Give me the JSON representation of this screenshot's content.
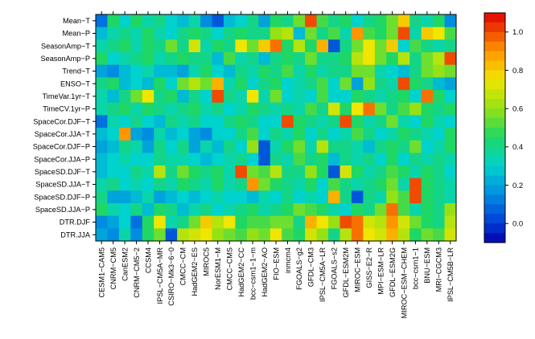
{
  "chart_data": {
    "type": "heatmap",
    "title": "",
    "xlabel": "",
    "ylabel": "",
    "rows": [
      "Mean−T",
      "Mean−P",
      "SeasonAmp−T",
      "SeasonAmp−P",
      "Trend−T",
      "ENSO−T",
      "TimeVar.1yr−T",
      "TimeCV.1yr−P",
      "SpaceCor.DJF−T",
      "SpaceCor.JJA−T",
      "SpaceCor.DJF−P",
      "SpaceCor.JJA−P",
      "SpaceSD.DJF−T",
      "SpaceSD.JJA−T",
      "SpaceSD.DJF−P",
      "SpaceSD.JJA−P",
      "DTR.DJF",
      "DTR.JJA"
    ],
    "columns": [
      "CESM1−CAM5",
      "CNRM−CM5",
      "CanESM2",
      "CNRM−CM5−2",
      "CCSM4",
      "IPSL−CM5A−MR",
      "CSIRO−Mk3−6−0",
      "CMCC−CM",
      "HadGEM2−ES",
      "MIROC5",
      "NorESM1−M",
      "CMCC−CMS",
      "HadGEM2−CC",
      "bcc−csm1−1−m",
      "HadGEM2−AO",
      "FIO−ESM",
      "inmcm4",
      "FGOALS−g2",
      "GFDL−CM3",
      "IPSL−CM5A−LR",
      "FGOALS−s2",
      "GFDL−ESM2M",
      "MIROC−ESM",
      "GISS−E2−R",
      "MPI−ESM−LR",
      "GFDL−ESM2G",
      "MIROC−ESM−CHEM",
      "bcc−csm1−1",
      "BNU−ESM",
      "MRI−CGCM3",
      "IPSL−CM5B−LR"
    ],
    "values": [
      [
        0.1,
        0.45,
        0.3,
        0.45,
        0.35,
        0.4,
        0.3,
        0.25,
        0.35,
        0.15,
        0.05,
        0.25,
        0.3,
        0.4,
        0.2,
        0.45,
        0.4,
        0.55,
        1.0,
        0.5,
        0.4,
        0.45,
        0.3,
        0.4,
        0.45,
        0.55,
        0.8,
        0.4,
        0.35,
        0.45,
        0.15
      ],
      [
        0.25,
        0.35,
        0.4,
        0.35,
        0.45,
        0.35,
        0.3,
        0.4,
        0.45,
        0.4,
        0.3,
        0.4,
        0.45,
        0.4,
        0.4,
        0.6,
        0.65,
        0.25,
        0.55,
        0.4,
        0.5,
        0.35,
        0.9,
        0.5,
        0.45,
        0.55,
        1.0,
        0.35,
        0.8,
        0.75,
        0.5
      ],
      [
        0.35,
        0.4,
        0.45,
        0.35,
        0.45,
        0.4,
        0.55,
        0.4,
        0.7,
        0.35,
        0.45,
        0.4,
        0.75,
        0.55,
        0.8,
        0.95,
        0.45,
        0.65,
        0.45,
        0.85,
        0.05,
        0.4,
        0.55,
        0.75,
        0.55,
        0.8,
        0.3,
        0.5,
        0.4,
        0.35,
        0.4
      ],
      [
        0.45,
        0.3,
        0.35,
        0.4,
        0.45,
        0.35,
        0.4,
        0.45,
        0.4,
        0.4,
        0.25,
        0.5,
        0.35,
        0.4,
        0.25,
        0.4,
        0.45,
        0.4,
        0.55,
        0.4,
        0.4,
        0.45,
        0.65,
        0.75,
        0.55,
        0.45,
        0.65,
        0.4,
        0.55,
        0.65,
        1.0
      ],
      [
        0.2,
        0.15,
        0.25,
        0.3,
        0.35,
        0.25,
        0.25,
        0.2,
        0.35,
        0.45,
        0.3,
        0.25,
        0.4,
        0.35,
        0.45,
        0.4,
        0.5,
        0.35,
        0.45,
        0.35,
        0.4,
        0.4,
        0.55,
        0.55,
        0.35,
        0.3,
        0.25,
        0.4,
        0.55,
        0.6,
        0.55
      ],
      [
        0.4,
        0.45,
        0.25,
        0.3,
        0.25,
        0.45,
        0.3,
        0.55,
        0.65,
        0.55,
        0.85,
        0.35,
        0.45,
        0.3,
        0.4,
        0.45,
        0.3,
        0.35,
        0.4,
        0.5,
        0.3,
        0.55,
        0.2,
        0.6,
        0.4,
        0.35,
        1.0,
        0.45,
        0.4,
        0.25,
        0.2
      ],
      [
        0.35,
        0.25,
        0.4,
        0.55,
        0.75,
        0.4,
        0.45,
        0.25,
        0.4,
        0.3,
        1.0,
        0.4,
        0.35,
        0.75,
        0.35,
        0.55,
        0.3,
        0.35,
        0.3,
        0.5,
        0.3,
        0.3,
        0.45,
        0.4,
        0.35,
        0.4,
        0.45,
        0.3,
        0.95,
        0.45,
        0.3
      ],
      [
        0.35,
        0.4,
        0.45,
        0.35,
        0.45,
        0.4,
        0.35,
        0.4,
        0.45,
        0.35,
        0.4,
        0.3,
        0.35,
        0.45,
        0.4,
        0.35,
        0.4,
        0.35,
        0.5,
        0.4,
        0.7,
        0.45,
        0.75,
        0.95,
        0.55,
        0.4,
        0.5,
        0.6,
        0.45,
        0.4,
        0.45
      ],
      [
        0.1,
        0.35,
        0.3,
        0.4,
        0.3,
        0.25,
        0.4,
        0.35,
        0.4,
        0.3,
        0.3,
        0.4,
        0.45,
        0.4,
        0.3,
        0.3,
        1.0,
        0.45,
        0.4,
        0.35,
        0.4,
        1.0,
        0.45,
        0.35,
        0.4,
        0.55,
        0.35,
        0.3,
        0.45,
        0.35,
        0.3
      ],
      [
        0.25,
        0.3,
        0.9,
        0.2,
        0.15,
        0.35,
        0.25,
        0.3,
        0.2,
        0.15,
        0.3,
        0.3,
        0.4,
        0.5,
        0.3,
        0.4,
        0.35,
        0.45,
        0.3,
        0.4,
        0.3,
        0.35,
        0.5,
        0.4,
        0.3,
        0.35,
        0.45,
        0.4,
        0.35,
        0.3,
        0.45
      ],
      [
        0.2,
        0.25,
        0.4,
        0.35,
        0.2,
        0.4,
        0.3,
        0.4,
        0.2,
        0.35,
        0.25,
        0.4,
        0.3,
        0.6,
        0.05,
        0.35,
        0.45,
        0.55,
        0.35,
        0.65,
        0.4,
        0.4,
        0.35,
        0.25,
        0.4,
        0.45,
        0.4,
        0.55,
        0.3,
        0.35,
        0.45
      ],
      [
        0.25,
        0.3,
        0.35,
        0.3,
        0.3,
        0.4,
        0.35,
        0.35,
        0.3,
        0.25,
        0.3,
        0.35,
        0.4,
        0.3,
        0.05,
        0.4,
        0.35,
        0.5,
        0.4,
        0.45,
        0.25,
        0.4,
        0.35,
        0.4,
        0.3,
        0.45,
        0.3,
        0.4,
        0.35,
        0.4,
        0.35
      ],
      [
        0.25,
        0.3,
        0.3,
        0.4,
        0.35,
        0.65,
        0.4,
        0.55,
        0.45,
        0.4,
        0.45,
        0.35,
        1.0,
        0.55,
        0.5,
        0.65,
        0.4,
        0.4,
        0.6,
        0.45,
        0.05,
        0.7,
        0.45,
        0.35,
        0.4,
        0.5,
        0.45,
        0.35,
        0.45,
        0.4,
        0.3
      ],
      [
        0.35,
        0.4,
        0.3,
        0.35,
        0.3,
        0.4,
        0.35,
        0.45,
        0.4,
        0.35,
        0.45,
        0.35,
        0.4,
        0.9,
        0.55,
        0.45,
        0.4,
        0.35,
        0.45,
        0.3,
        0.5,
        0.4,
        0.35,
        0.4,
        0.45,
        0.55,
        0.35,
        1.0,
        0.45,
        0.4,
        0.35
      ],
      [
        0.4,
        0.2,
        0.2,
        0.25,
        0.35,
        0.2,
        0.25,
        0.3,
        0.25,
        0.3,
        0.35,
        0.3,
        0.3,
        0.25,
        0.35,
        0.3,
        0.4,
        0.3,
        0.35,
        0.3,
        0.85,
        0.4,
        0.05,
        0.4,
        0.35,
        0.6,
        0.5,
        1.0,
        0.45,
        0.4,
        0.35
      ],
      [
        0.45,
        0.35,
        0.3,
        0.4,
        0.25,
        0.45,
        0.4,
        0.25,
        0.35,
        0.4,
        0.3,
        0.35,
        0.4,
        0.45,
        0.35,
        0.4,
        0.45,
        0.55,
        0.5,
        0.45,
        0.35,
        0.3,
        0.45,
        0.4,
        0.55,
        0.95,
        0.5,
        0.35,
        0.45,
        0.4,
        0.6
      ],
      [
        0.15,
        0.2,
        0.3,
        0.1,
        0.45,
        0.75,
        0.35,
        0.4,
        0.55,
        0.8,
        0.65,
        0.75,
        0.45,
        0.5,
        0.5,
        0.55,
        0.55,
        0.4,
        0.85,
        0.75,
        0.6,
        1.0,
        0.95,
        0.7,
        0.65,
        0.9,
        0.7,
        0.55,
        0.45,
        0.4,
        0.65
      ],
      [
        0.2,
        0.15,
        0.35,
        0.15,
        0.45,
        0.55,
        0.05,
        0.65,
        0.7,
        0.75,
        0.6,
        0.55,
        0.5,
        0.6,
        0.55,
        0.75,
        0.5,
        0.45,
        0.7,
        0.6,
        0.4,
        0.65,
        0.95,
        0.75,
        0.7,
        0.85,
        0.65,
        0.45,
        0.55,
        0.5,
        0.7
      ]
    ],
    "colorbar": {
      "ticks": [
        0.0,
        0.2,
        0.4,
        0.6,
        0.8,
        1.0
      ],
      "tick_labels": [
        "0.0",
        "0.2",
        "0.4",
        "0.6",
        "0.8",
        "1.0"
      ],
      "range": [
        -0.1,
        1.1
      ]
    }
  }
}
